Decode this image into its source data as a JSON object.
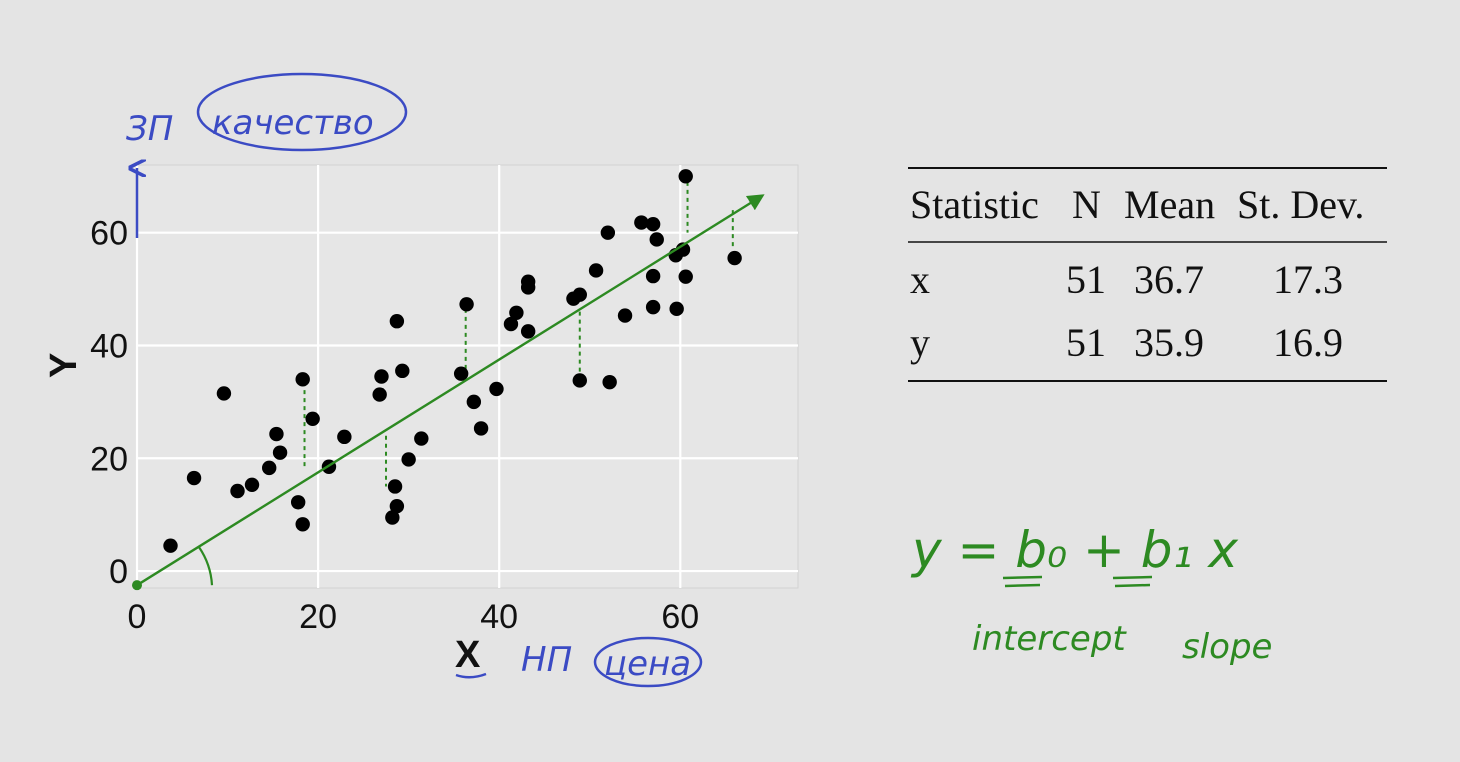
{
  "chart_data": {
    "type": "scatter",
    "xlabel": "X",
    "ylabel": "Y",
    "xlim": [
      0,
      73
    ],
    "ylim": [
      -3,
      72
    ],
    "xticks": [
      0,
      20,
      40,
      60
    ],
    "yticks": [
      0,
      20,
      40,
      60
    ],
    "grid": true,
    "points": [
      {
        "x": 3.7,
        "y": 4.5
      },
      {
        "x": 6.3,
        "y": 16.5
      },
      {
        "x": 9.6,
        "y": 31.5
      },
      {
        "x": 11.1,
        "y": 14.2
      },
      {
        "x": 12.7,
        "y": 15.3
      },
      {
        "x": 14.6,
        "y": 18.3
      },
      {
        "x": 15.4,
        "y": 24.3
      },
      {
        "x": 15.8,
        "y": 21
      },
      {
        "x": 17.8,
        "y": 12.2
      },
      {
        "x": 18.3,
        "y": 8.3
      },
      {
        "x": 18.3,
        "y": 34
      },
      {
        "x": 19.4,
        "y": 27
      },
      {
        "x": 21.2,
        "y": 18.5
      },
      {
        "x": 22.9,
        "y": 23.8
      },
      {
        "x": 26.8,
        "y": 31.3
      },
      {
        "x": 27.0,
        "y": 34.5
      },
      {
        "x": 28.2,
        "y": 9.5
      },
      {
        "x": 28.5,
        "y": 15
      },
      {
        "x": 28.7,
        "y": 11.5
      },
      {
        "x": 28.7,
        "y": 44.3
      },
      {
        "x": 29.3,
        "y": 35.5
      },
      {
        "x": 30.0,
        "y": 19.8
      },
      {
        "x": 31.4,
        "y": 23.5
      },
      {
        "x": 35.8,
        "y": 35
      },
      {
        "x": 36.4,
        "y": 47.3
      },
      {
        "x": 37.2,
        "y": 30
      },
      {
        "x": 38.0,
        "y": 25.3
      },
      {
        "x": 39.7,
        "y": 32.3
      },
      {
        "x": 41.3,
        "y": 43.8
      },
      {
        "x": 41.9,
        "y": 45.8
      },
      {
        "x": 43.2,
        "y": 50.3
      },
      {
        "x": 43.2,
        "y": 51.3
      },
      {
        "x": 43.2,
        "y": 42.5
      },
      {
        "x": 48.2,
        "y": 48.3
      },
      {
        "x": 48.9,
        "y": 49
      },
      {
        "x": 48.9,
        "y": 33.8
      },
      {
        "x": 50.7,
        "y": 53.3
      },
      {
        "x": 52.0,
        "y": 60
      },
      {
        "x": 52.2,
        "y": 33.5
      },
      {
        "x": 53.9,
        "y": 45.3
      },
      {
        "x": 55.7,
        "y": 61.8
      },
      {
        "x": 57.0,
        "y": 61.5
      },
      {
        "x": 57.0,
        "y": 52.3
      },
      {
        "x": 57.0,
        "y": 46.8
      },
      {
        "x": 57.4,
        "y": 58.8
      },
      {
        "x": 59.5,
        "y": 56
      },
      {
        "x": 59.6,
        "y": 46.5
      },
      {
        "x": 60.3,
        "y": 57
      },
      {
        "x": 60.6,
        "y": 70
      },
      {
        "x": 60.6,
        "y": 52.2
      },
      {
        "x": 66.0,
        "y": 55.5
      }
    ],
    "annotations": {
      "regression_line": {
        "x1": 0,
        "y1": -2.5,
        "x2": 69,
        "y2": 66.5
      },
      "residuals": [
        {
          "x": 18.5,
          "y1": 33.5,
          "y2": 18
        },
        {
          "x": 27.5,
          "y1": 24,
          "y2": 15
        },
        {
          "x": 36.3,
          "y1": 46.5,
          "y2": 34
        },
        {
          "x": 48.9,
          "y1": 46,
          "y2": 34
        },
        {
          "x": 60.8,
          "y1": 69,
          "y2": 60
        },
        {
          "x": 65.8,
          "y1": 64,
          "y2": 57
        }
      ]
    }
  },
  "stats_table": {
    "headers": [
      "Statistic",
      "N",
      "Mean",
      "St. Dev."
    ],
    "rows": [
      [
        "x",
        "51",
        "36.7",
        "17.3"
      ],
      [
        "y",
        "51",
        "35.9",
        "16.9"
      ]
    ]
  },
  "handwriting": {
    "y_note_prefix": "ЗП",
    "y_note_circled": "качество",
    "x_note_prefix": "НП",
    "x_note_circled": "цена",
    "equation": "y = b₀ + b₁ x",
    "intercept_label": "intercept",
    "slope_label": "slope"
  },
  "colors": {
    "background": "#e4e4e4",
    "panel": "#e6e6e6",
    "grid": "#ffffff",
    "points": "#000000",
    "annotation_green": "#2d8a22",
    "annotation_blue": "#3b4bc4"
  }
}
